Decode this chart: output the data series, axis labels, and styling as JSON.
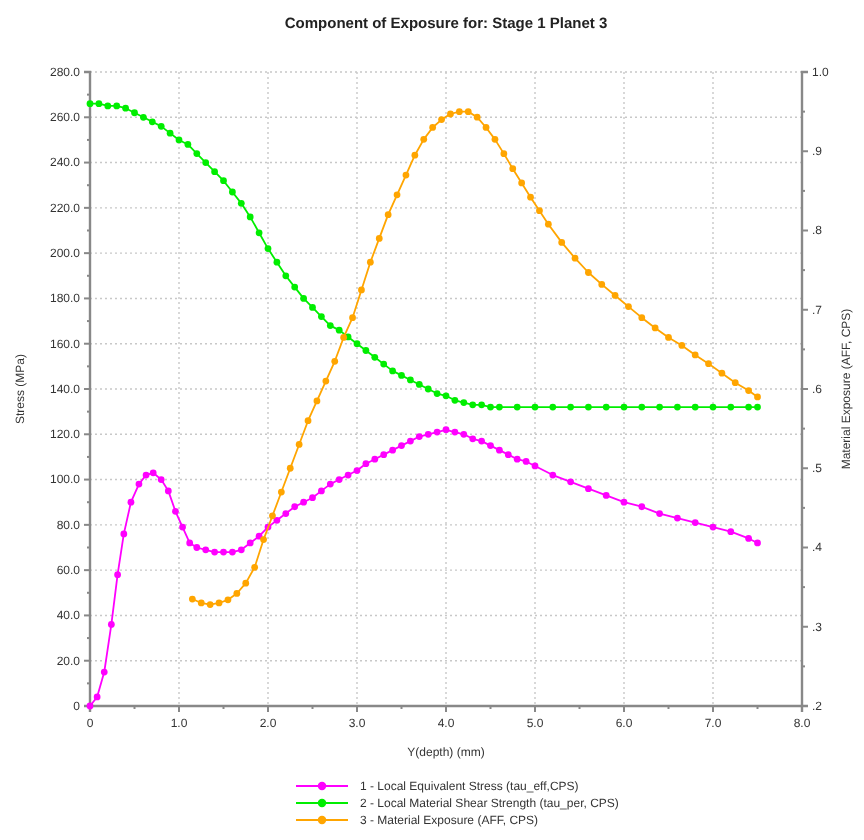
{
  "chart_data": {
    "type": "line",
    "title": "Component of Exposure for: Stage 1 Planet 3",
    "xlabel": "Y(depth) (mm)",
    "ylabel": "Stress (MPa)",
    "y2label": "Material Exposure (AFF, CPS)",
    "xlim": [
      0,
      8
    ],
    "xticks": [
      0,
      {
        "value": 0.5,
        "label": null
      },
      {
        "value": 1,
        "label": "1.0"
      },
      {
        "value": 1.5,
        "label": null
      },
      {
        "value": 2,
        "label": "2.0"
      },
      {
        "value": 2.5,
        "label": null
      },
      {
        "value": 3,
        "label": "3.0"
      },
      {
        "value": 3.5,
        "label": null
      },
      {
        "value": 4,
        "label": "4.0"
      },
      {
        "value": 4.5,
        "label": null
      },
      {
        "value": 5,
        "label": "5.0"
      },
      {
        "value": 5.5,
        "label": null
      },
      {
        "value": 6,
        "label": "6.0"
      },
      {
        "value": 6.5,
        "label": null
      },
      {
        "value": 7,
        "label": "7.0"
      },
      {
        "value": 7.5,
        "label": null
      },
      {
        "value": 8,
        "label": "8.0"
      }
    ],
    "ylim": [
      0,
      280
    ],
    "yticks": [
      0,
      {
        "value": 10,
        "label": null
      },
      {
        "value": 20,
        "label": "20.0"
      },
      {
        "value": 30,
        "label": null
      },
      {
        "value": 40,
        "label": "40.0"
      },
      {
        "value": 50,
        "label": null
      },
      {
        "value": 60,
        "label": "60.0"
      },
      {
        "value": 70,
        "label": null
      },
      {
        "value": 80,
        "label": "80.0"
      },
      {
        "value": 90,
        "label": null
      },
      {
        "value": 100,
        "label": "100.0"
      },
      {
        "value": 110,
        "label": null
      },
      {
        "value": 120,
        "label": "120.0"
      },
      {
        "value": 130,
        "label": null
      },
      {
        "value": 140,
        "label": "140.0"
      },
      {
        "value": 150,
        "label": null
      },
      {
        "value": 160,
        "label": "160.0"
      },
      {
        "value": 170,
        "label": null
      },
      {
        "value": 180,
        "label": "180.0"
      },
      {
        "value": 190,
        "label": null
      },
      {
        "value": 200,
        "label": "200.0"
      },
      {
        "value": 210,
        "label": null
      },
      {
        "value": 220,
        "label": "220.0"
      },
      {
        "value": 230,
        "label": null
      },
      {
        "value": 240,
        "label": "240.0"
      },
      {
        "value": 250,
        "label": null
      },
      {
        "value": 260,
        "label": "260.0"
      },
      {
        "value": 270,
        "label": null
      },
      {
        "value": 280,
        "label": "280.0"
      }
    ],
    "y2lim": [
      0.2,
      1.0
    ],
    "y2ticks": [
      {
        "value": 0.2,
        "label": ".2"
      },
      {
        "value": 0.25,
        "label": null
      },
      {
        "value": 0.3,
        "label": ".3"
      },
      {
        "value": 0.35,
        "label": null
      },
      {
        "value": 0.4,
        "label": ".4"
      },
      {
        "value": 0.45,
        "label": null
      },
      {
        "value": 0.5,
        "label": ".5"
      },
      {
        "value": 0.55,
        "label": null
      },
      {
        "value": 0.6,
        "label": ".6"
      },
      {
        "value": 0.65,
        "label": null
      },
      {
        "value": 0.7,
        "label": ".7"
      },
      {
        "value": 0.75,
        "label": null
      },
      {
        "value": 0.8,
        "label": ".8"
      },
      {
        "value": 0.85,
        "label": null
      },
      {
        "value": 0.9,
        "label": ".9"
      },
      {
        "value": 0.95,
        "label": null
      },
      {
        "value": 1.0,
        "label": "1.0"
      }
    ],
    "grid": true,
    "legend": "bottom",
    "marker": "circle",
    "line_style": "solid",
    "series": [
      {
        "name": "1 - Local Equivalent Stress (tau_eff,CPS)",
        "color": "#ff00ff",
        "x": [
          0,
          0.08,
          0.16,
          0.24,
          0.31,
          0.38,
          0.46,
          0.55,
          0.63,
          0.71,
          0.8,
          0.88,
          0.96,
          1.04,
          1.12,
          1.2,
          1.3,
          1.4,
          1.5,
          1.6,
          1.7,
          1.8,
          1.9,
          2.0,
          2.1,
          2.2,
          2.3,
          2.4,
          2.5,
          2.6,
          2.7,
          2.8,
          2.9,
          3.0,
          3.1,
          3.2,
          3.3,
          3.4,
          3.5,
          3.6,
          3.7,
          3.8,
          3.9,
          4.0,
          4.1,
          4.2,
          4.3,
          4.4,
          4.5,
          4.6,
          4.7,
          4.8,
          4.9,
          5.0,
          5.2,
          5.4,
          5.6,
          5.8,
          6.0,
          6.2,
          6.4,
          6.6,
          6.8,
          7.0,
          7.2,
          7.4,
          7.5
        ],
        "values": [
          0,
          4,
          15,
          36,
          58,
          76,
          90,
          98,
          102,
          103,
          100,
          95,
          86,
          79,
          72,
          70,
          69,
          68,
          68,
          68,
          69,
          72,
          75,
          79,
          82,
          85,
          88,
          90,
          92,
          95,
          98,
          100,
          102,
          104,
          107,
          109,
          111,
          113,
          115,
          117,
          119,
          120,
          121,
          122,
          121,
          120,
          118,
          117,
          115,
          113,
          111,
          109,
          108,
          106,
          102,
          99,
          96,
          93,
          90,
          88,
          85,
          83,
          81,
          79,
          77,
          74,
          72
        ]
      },
      {
        "name": "2 - Local Material Shear Strength (tau_per, CPS)",
        "color": "#00ee00",
        "x": [
          0,
          0.1,
          0.2,
          0.3,
          0.4,
          0.5,
          0.6,
          0.7,
          0.8,
          0.9,
          1.0,
          1.1,
          1.2,
          1.3,
          1.4,
          1.5,
          1.6,
          1.7,
          1.8,
          1.9,
          2.0,
          2.1,
          2.2,
          2.3,
          2.4,
          2.5,
          2.6,
          2.7,
          2.8,
          2.9,
          3.0,
          3.1,
          3.2,
          3.3,
          3.4,
          3.5,
          3.6,
          3.7,
          3.8,
          3.9,
          4.0,
          4.1,
          4.2,
          4.3,
          4.4,
          4.5,
          4.6,
          4.8,
          5.0,
          5.2,
          5.4,
          5.6,
          5.8,
          6.0,
          6.2,
          6.4,
          6.6,
          6.8,
          7.0,
          7.2,
          7.4,
          7.5
        ],
        "values": [
          266,
          266,
          265,
          265,
          264,
          262,
          260,
          258,
          256,
          253,
          250,
          248,
          244,
          240,
          236,
          232,
          227,
          222,
          216,
          209,
          202,
          196,
          190,
          185,
          180,
          176,
          172,
          168,
          166,
          163,
          160,
          157,
          154,
          151,
          148,
          146,
          144,
          142,
          140,
          138,
          137,
          135,
          134,
          133,
          133,
          132,
          132,
          132,
          132,
          132,
          132,
          132,
          132,
          132,
          132,
          132,
          132,
          132,
          132,
          132,
          132,
          132
        ]
      },
      {
        "name": "3 - Material Exposure (AFF, CPS)",
        "color": "#ffa500",
        "axis": "y2",
        "x": [
          1.15,
          1.25,
          1.35,
          1.45,
          1.55,
          1.65,
          1.75,
          1.85,
          1.95,
          2.05,
          2.15,
          2.25,
          2.35,
          2.45,
          2.55,
          2.65,
          2.75,
          2.85,
          2.95,
          3.05,
          3.15,
          3.25,
          3.35,
          3.45,
          3.55,
          3.65,
          3.75,
          3.85,
          3.95,
          4.05,
          4.15,
          4.25,
          4.35,
          4.45,
          4.55,
          4.65,
          4.75,
          4.85,
          4.95,
          5.05,
          5.15,
          5.3,
          5.45,
          5.6,
          5.75,
          5.9,
          6.05,
          6.2,
          6.35,
          6.5,
          6.65,
          6.8,
          6.95,
          7.1,
          7.25,
          7.4,
          7.5
        ],
        "values": [
          0.335,
          0.33,
          0.328,
          0.33,
          0.334,
          0.342,
          0.355,
          0.375,
          0.41,
          0.44,
          0.47,
          0.5,
          0.53,
          0.56,
          0.585,
          0.61,
          0.635,
          0.665,
          0.69,
          0.725,
          0.76,
          0.79,
          0.82,
          0.845,
          0.87,
          0.895,
          0.915,
          0.93,
          0.94,
          0.947,
          0.95,
          0.95,
          0.943,
          0.93,
          0.915,
          0.897,
          0.878,
          0.86,
          0.842,
          0.825,
          0.808,
          0.785,
          0.765,
          0.747,
          0.732,
          0.718,
          0.704,
          0.69,
          0.677,
          0.665,
          0.655,
          0.643,
          0.632,
          0.62,
          0.608,
          0.598,
          0.59
        ]
      }
    ]
  }
}
